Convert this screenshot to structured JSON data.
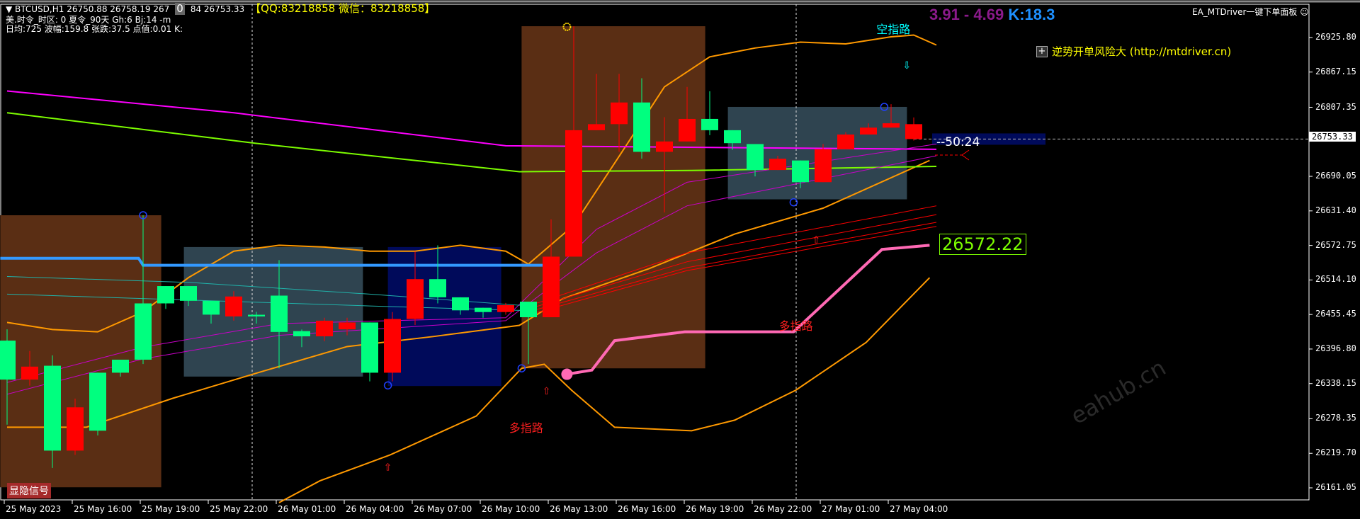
{
  "header": {
    "symbol_line": "▼ BTCUSD,H1  26750.88 26758.19 267",
    "symbol_line_rest": "84 26753.33",
    "overlay_zero": "0",
    "qq": "【QQ:83218858 微信：83218858】",
    "line2": "美.时令_时区: 0  夏令_90天  Gh:6 Bj:14  -m",
    "line3": "日均:725  波幅:159.8  张跌:37.5  点值:0.01  K:"
  },
  "range_text": "3.91 - 4.69",
  "k_text": "K:18.3",
  "panel_title": "EA_MTDriver一键下单面板 ☺",
  "risk_text": "逆势开单风险大 (http://mtdriver.cn)",
  "risk_icon": "plus-box-icon",
  "timer": "--50:24",
  "last_value_label": "26572.22",
  "signal_button": "显隐信号",
  "watermark": "eahub.cn",
  "annotations": [
    {
      "text": "空指路",
      "idx": 39.1,
      "price": 26944,
      "color": "#00ffff"
    },
    {
      "text": "多指路",
      "idx": 22.9,
      "price": 26267,
      "color": "#ff2020"
    },
    {
      "text": "多指路",
      "idx": 34.8,
      "price": 26440,
      "color": "#ff2020"
    }
  ],
  "colors": {
    "bull": "#00ff7f",
    "bear": "#ff0000",
    "up_band": "#ff9900",
    "ma_magenta": "#ff00ff",
    "ma_green": "#7cfc00",
    "blue_line": "#3399ff",
    "pink_line": "#ff69b4"
  },
  "chart_data": {
    "type": "candlestick",
    "symbol": "BTCUSD",
    "timeframe": "H1",
    "ylim": [
      26161.05,
      26925.8
    ],
    "y_ticks": [
      "26925.80",
      "26867.15",
      "26807.35",
      "26753.33",
      "26690.05",
      "26631.40",
      "26572.75",
      "26514.10",
      "26455.45",
      "26396.80",
      "26338.15",
      "26278.35",
      "26219.70",
      "26161.05"
    ],
    "current_price": 26753.33,
    "x_ticks": [
      "25 May 2023",
      "25 May 16:00",
      "25 May 19:00",
      "25 May 22:00",
      "26 May 01:00",
      "26 May 04:00",
      "26 May 07:00",
      "26 May 10:00",
      "26 May 13:00",
      "26 May 16:00",
      "26 May 19:00",
      "26 May 22:00",
      "27 May 01:00",
      "27 May 04:00"
    ],
    "candles_ohlc": [
      [
        26344.9,
        26430.2,
        26268.4,
        26411.1
      ],
      [
        26366.9,
        26393.4,
        26334.6,
        26344.9
      ],
      [
        26224.3,
        26386.1,
        26194.9,
        26368.4
      ],
      [
        26297.8,
        26312.5,
        26216.9,
        26224.3
      ],
      [
        26258.1,
        26356.6,
        26250.0,
        26356.6
      ],
      [
        26356.6,
        26378.7,
        26350.0,
        26378.7
      ],
      [
        26378.7,
        26624.0,
        26371.4,
        26474.3
      ],
      [
        26474.3,
        26503.7,
        26465.0,
        26503.7
      ],
      [
        26478.7,
        26503.7,
        26470.0,
        26503.7
      ],
      [
        26455.2,
        26478.7,
        26440.0,
        26478.7
      ],
      [
        26486.0,
        26495.0,
        26445.0,
        26452.2
      ],
      [
        26452.2,
        26460.0,
        26440.0,
        26455.0
      ],
      [
        26425.8,
        26547.8,
        26364.0,
        26487.5
      ],
      [
        26418.4,
        26430.0,
        26400.0,
        26427.2
      ],
      [
        26444.9,
        26450.0,
        26410.0,
        26418.4
      ],
      [
        26441.9,
        26450.0,
        26420.0,
        26430.2
      ],
      [
        26356.6,
        26441.9,
        26341.9,
        26441.9
      ],
      [
        26447.8,
        26459.6,
        26341.9,
        26356.6
      ],
      [
        26515.5,
        26562.5,
        26437.5,
        26447.8
      ],
      [
        26484.6,
        26572.9,
        26474.3,
        26515.5
      ],
      [
        26462.5,
        26484.6,
        26455.0,
        26484.6
      ],
      [
        26459.6,
        26466.9,
        26450.0,
        26466.9
      ],
      [
        26471.4,
        26475.0,
        26455.0,
        26459.6
      ],
      [
        26450.8,
        26477.2,
        26371.4,
        26477.2
      ],
      [
        26553.7,
        26617.0,
        26450.8,
        26450.8
      ],
      [
        26768.4,
        26944.9,
        26553.7,
        26553.7
      ],
      [
        26778.7,
        26864.0,
        26768.4,
        26768.4
      ],
      [
        26815.5,
        26864.0,
        26731.7,
        26778.7
      ],
      [
        26731.7,
        26856.7,
        26720.0,
        26815.5
      ],
      [
        26749.3,
        26790.5,
        26628.7,
        26731.7
      ],
      [
        26787.6,
        26842.0,
        26749.3,
        26749.3
      ],
      [
        26768.4,
        26834.6,
        26760.0,
        26787.6
      ],
      [
        26746.4,
        26768.4,
        26735.0,
        26768.4
      ],
      [
        26700.8,
        26744.9,
        26690.0,
        26744.9
      ],
      [
        26719.9,
        26725.0,
        26700.8,
        26700.8
      ],
      [
        26680.2,
        26717.0,
        26670.0,
        26717.0
      ],
      [
        26736.1,
        26745.0,
        26680.2,
        26680.2
      ],
      [
        26761.1,
        26765.0,
        26736.1,
        26736.1
      ],
      [
        26772.8,
        26780.0,
        26761.1,
        26761.1
      ],
      [
        26780.2,
        26812.6,
        26772.8,
        26772.8
      ],
      [
        26778.7,
        26790.0,
        26750.88,
        26753.33
      ]
    ],
    "boxes": [
      {
        "from": -0.3,
        "to": 6.8,
        "top": 26624,
        "bottom": 26162,
        "color": "#5a2e14"
      },
      {
        "from": 7.8,
        "to": 15.7,
        "top": 26570,
        "bottom": 26350,
        "color": "#2f4450"
      },
      {
        "from": 16.8,
        "to": 21.8,
        "top": 26570,
        "bottom": 26334,
        "color": "#000a5a"
      },
      {
        "from": 22.7,
        "to": 30.8,
        "top": 26945,
        "bottom": 26364,
        "color": "#5a2e14"
      },
      {
        "from": 31.8,
        "to": 39.7,
        "top": 26808,
        "bottom": 26651,
        "color": "#2f4450"
      }
    ],
    "lines": [
      {
        "key": "upper-band",
        "color": "#ff9900",
        "width": 2,
        "points": [
          [
            0,
            26442
          ],
          [
            2,
            26430
          ],
          [
            4,
            26426
          ],
          [
            6,
            26460
          ],
          [
            8,
            26518
          ],
          [
            10,
            26563
          ],
          [
            12,
            26573
          ],
          [
            14,
            26570
          ],
          [
            16,
            26563
          ],
          [
            18,
            26563
          ],
          [
            20,
            26573
          ],
          [
            22,
            26563
          ],
          [
            23,
            26541
          ],
          [
            25,
            26607
          ],
          [
            27,
            26724
          ],
          [
            29,
            26842
          ],
          [
            31,
            26893
          ],
          [
            33,
            26908
          ],
          [
            35,
            26918
          ],
          [
            37,
            26915
          ],
          [
            39,
            26927
          ],
          [
            40,
            26930
          ],
          [
            41,
            26913
          ]
        ]
      },
      {
        "key": "middle-band",
        "color": "#ff9900",
        "width": 2,
        "points": [
          [
            0,
            26264
          ],
          [
            3.5,
            26264
          ],
          [
            7.3,
            26313
          ],
          [
            11.1,
            26357
          ],
          [
            15,
            26401
          ],
          [
            18.8,
            26418
          ],
          [
            22.6,
            26437
          ],
          [
            24.5,
            26482
          ],
          [
            28.3,
            26533
          ],
          [
            32.1,
            26592
          ],
          [
            36,
            26636
          ],
          [
            40.7,
            26717
          ]
        ]
      },
      {
        "key": "lower-band",
        "color": "#ff9900",
        "width": 2,
        "points": [
          [
            12,
            26136
          ],
          [
            13.8,
            26173
          ],
          [
            16.9,
            26217
          ],
          [
            20.7,
            26283
          ],
          [
            22.7,
            26364
          ],
          [
            23.7,
            26371
          ],
          [
            24.9,
            26327
          ],
          [
            26.8,
            26264
          ],
          [
            30.2,
            26258
          ],
          [
            32.1,
            26276
          ],
          [
            34.8,
            26327
          ],
          [
            37.9,
            26408
          ],
          [
            40.7,
            26518
          ]
        ]
      },
      {
        "key": "magenta-ma",
        "color": "#ff00ff",
        "width": 2,
        "points": [
          [
            0,
            26835
          ],
          [
            10,
            26798
          ],
          [
            22,
            26742
          ],
          [
            41,
            26736
          ]
        ]
      },
      {
        "key": "green-ma",
        "color": "#7cfc00",
        "width": 2,
        "points": [
          [
            0,
            26798
          ],
          [
            11,
            26746
          ],
          [
            22.6,
            26698
          ],
          [
            30.2,
            26700
          ],
          [
            41,
            26707
          ]
        ]
      },
      {
        "key": "blue-line",
        "color": "#3399ff",
        "width": 4,
        "points": [
          [
            -0.3,
            26551
          ],
          [
            5.8,
            26551
          ],
          [
            6,
            26539
          ],
          [
            23.7,
            26539
          ]
        ]
      },
      {
        "key": "pink-line",
        "color": "#ff69b4",
        "width": 4,
        "points": [
          [
            24.7,
            26354
          ],
          [
            25.8,
            26361
          ],
          [
            26.8,
            26411
          ],
          [
            29.9,
            26426
          ],
          [
            34.7,
            26426
          ],
          [
            38.6,
            26566
          ],
          [
            40.7,
            26573
          ]
        ]
      },
      {
        "key": "red-fan-1",
        "color": "#ff0000",
        "width": 1,
        "points": [
          [
            23,
            26470
          ],
          [
            30,
            26560
          ],
          [
            41,
            26640
          ]
        ]
      },
      {
        "key": "red-fan-2",
        "color": "#ff0000",
        "width": 1,
        "points": [
          [
            23,
            26465
          ],
          [
            30,
            26545
          ],
          [
            41,
            26625
          ]
        ]
      },
      {
        "key": "red-fan-3",
        "color": "#ff0000",
        "width": 1,
        "points": [
          [
            23,
            26460
          ],
          [
            30,
            26535
          ],
          [
            41,
            26612
          ]
        ]
      },
      {
        "key": "red-fan-4",
        "color": "#ff0000",
        "width": 1,
        "points": [
          [
            23,
            26455
          ],
          [
            30,
            26530
          ],
          [
            41,
            26605
          ]
        ]
      },
      {
        "key": "magenta-fan-1",
        "color": "#cc00cc",
        "width": 1,
        "points": [
          [
            0,
            26340
          ],
          [
            6,
            26400
          ],
          [
            12,
            26440
          ],
          [
            22,
            26450
          ],
          [
            26,
            26600
          ],
          [
            30,
            26680
          ],
          [
            41,
            26745
          ]
        ]
      },
      {
        "key": "magenta-fan-2",
        "color": "#cc00cc",
        "width": 1,
        "points": [
          [
            0,
            26320
          ],
          [
            6,
            26380
          ],
          [
            12,
            26420
          ],
          [
            22,
            26445
          ],
          [
            26,
            26560
          ],
          [
            30,
            26640
          ],
          [
            41,
            26725
          ]
        ]
      },
      {
        "key": "cyan-line-1",
        "color": "#20b2aa",
        "width": 1,
        "points": [
          [
            0,
            26520
          ],
          [
            8,
            26510
          ],
          [
            16,
            26490
          ],
          [
            23,
            26470
          ]
        ]
      },
      {
        "key": "cyan-line-2",
        "color": "#20b2aa",
        "width": 1,
        "points": [
          [
            0,
            26490
          ],
          [
            8,
            26480
          ],
          [
            16,
            26470
          ],
          [
            23,
            26462
          ]
        ]
      }
    ],
    "markers": [
      {
        "type": "circle",
        "idx": 6,
        "price": 26624,
        "color": "#2040ff"
      },
      {
        "type": "circle",
        "idx": 16.8,
        "price": 26335,
        "color": "#2040ff"
      },
      {
        "type": "circle",
        "idx": 22.7,
        "price": 26364,
        "color": "#2040ff"
      },
      {
        "type": "circle",
        "idx": 34.7,
        "price": 26646,
        "color": "#2040ff"
      },
      {
        "type": "circle",
        "idx": 38.7,
        "price": 26808,
        "color": "#2040ff"
      },
      {
        "type": "up-arrow",
        "idx": 16.8,
        "price": 26198,
        "color": "#ff2020"
      },
      {
        "type": "up-arrow",
        "idx": 23.8,
        "price": 26327,
        "color": "#ff2020"
      },
      {
        "type": "up-arrow",
        "idx": 35.7,
        "price": 26584,
        "color": "#ff2020"
      },
      {
        "type": "down-arrow",
        "idx": 39.7,
        "price": 26880,
        "color": "#00ffff"
      },
      {
        "type": "sun",
        "idx": 24.7,
        "price": 26944,
        "color": "#ffd700"
      }
    ]
  }
}
